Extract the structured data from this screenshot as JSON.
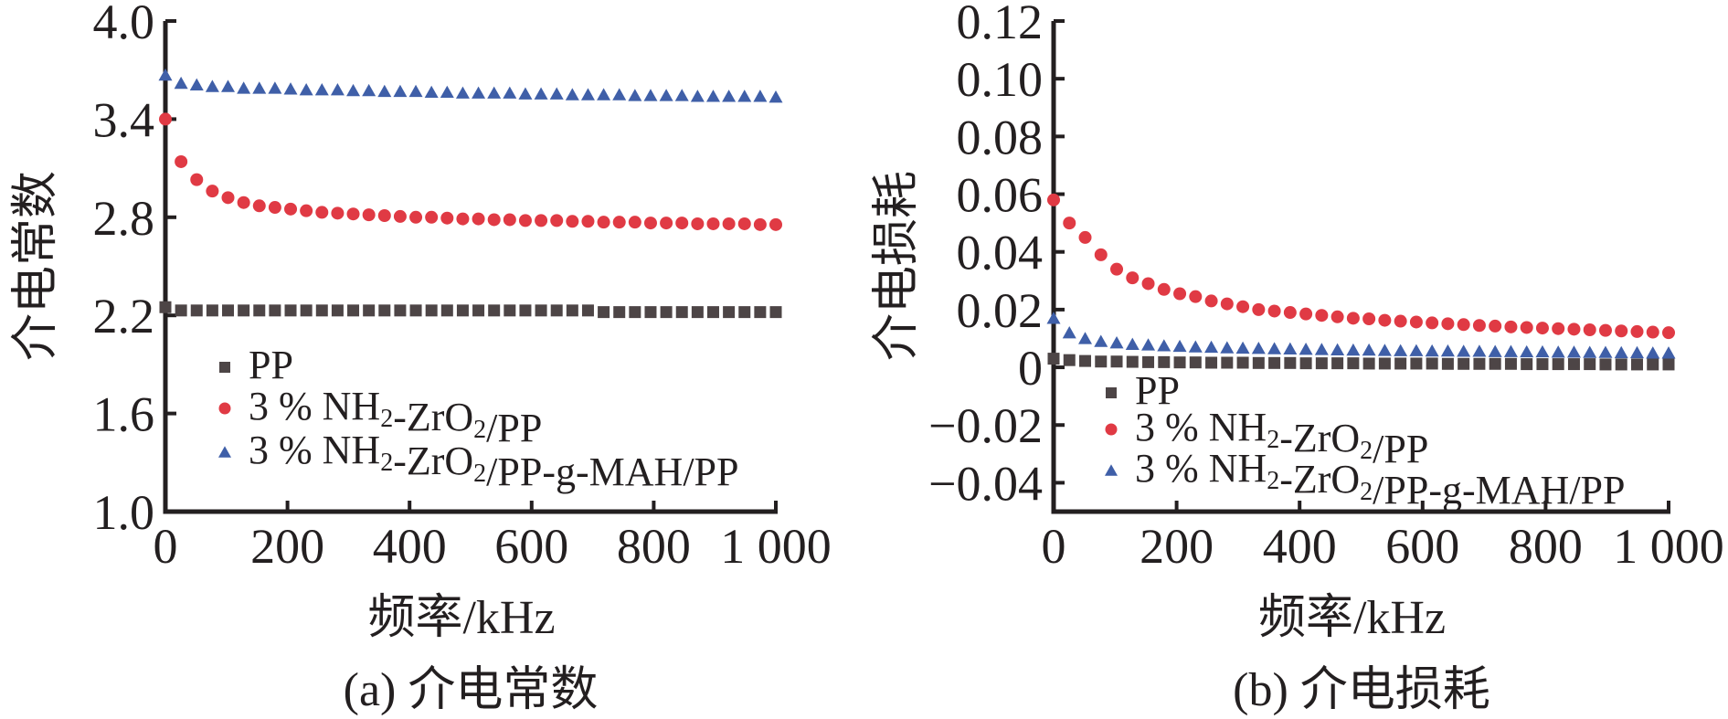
{
  "colors": {
    "PP": "#4d4546",
    "red": "#e03a44",
    "blue": "#3f5fa8",
    "axis": "#231f20"
  },
  "chart_data": [
    {
      "type": "scatter",
      "caption": "(a) 介电常数",
      "xlabel": "频率/kHz",
      "ylabel": "介电常数",
      "xlim": [
        0,
        1000
      ],
      "ylim": [
        1.0,
        4.0
      ],
      "xticks": [
        0,
        200,
        400,
        600,
        800,
        1000
      ],
      "xtick_labels": [
        "0",
        "200",
        "400",
        "600",
        "800",
        "1 000"
      ],
      "yticks": [
        1.0,
        1.6,
        2.2,
        2.8,
        3.4,
        4.0
      ],
      "ytick_labels": [
        "1.0",
        "1.6",
        "2.2",
        "2.8",
        "3.4",
        "4.0"
      ],
      "grid": false,
      "legend_position": "lower-left",
      "series": [
        {
          "name": "PP",
          "marker": "square",
          "color": "#4d4546",
          "values": [
            2.25,
            2.23,
            2.23,
            2.23,
            2.23,
            2.23,
            2.23,
            2.23,
            2.23,
            2.23,
            2.23,
            2.23,
            2.23,
            2.23,
            2.23,
            2.23,
            2.23,
            2.23,
            2.23,
            2.23,
            2.23,
            2.23,
            2.23,
            2.23,
            2.23,
            2.23,
            2.23,
            2.23,
            2.22,
            2.22,
            2.22,
            2.22,
            2.22,
            2.22,
            2.22,
            2.22,
            2.22,
            2.22,
            2.22,
            2.22
          ]
        },
        {
          "name": "3 % NH2-ZrO2/PP",
          "marker": "circle",
          "color": "#e03a44",
          "values": [
            3.4,
            3.14,
            3.03,
            2.96,
            2.92,
            2.89,
            2.87,
            2.86,
            2.85,
            2.84,
            2.83,
            2.825,
            2.82,
            2.815,
            2.81,
            2.805,
            2.8,
            2.8,
            2.795,
            2.79,
            2.79,
            2.785,
            2.785,
            2.78,
            2.78,
            2.78,
            2.775,
            2.775,
            2.77,
            2.77,
            2.77,
            2.765,
            2.765,
            2.765,
            2.76,
            2.76,
            2.76,
            2.76,
            2.755,
            2.755
          ]
        },
        {
          "name": "3 % NH2-ZrO2/PP-g-MAH/PP",
          "marker": "triangle",
          "color": "#3f5fa8",
          "values": [
            3.67,
            3.62,
            3.61,
            3.6,
            3.6,
            3.59,
            3.59,
            3.59,
            3.585,
            3.58,
            3.58,
            3.58,
            3.575,
            3.575,
            3.57,
            3.57,
            3.57,
            3.565,
            3.565,
            3.56,
            3.56,
            3.56,
            3.56,
            3.555,
            3.555,
            3.555,
            3.55,
            3.55,
            3.55,
            3.55,
            3.545,
            3.545,
            3.545,
            3.545,
            3.54,
            3.54,
            3.54,
            3.54,
            3.54,
            3.535
          ]
        }
      ]
    },
    {
      "type": "scatter",
      "caption": "(b) 介电损耗",
      "xlabel": "频率/kHz",
      "ylabel": "介电损耗",
      "xlim": [
        0,
        1000
      ],
      "ylim": [
        -0.05,
        0.12
      ],
      "xticks": [
        0,
        200,
        400,
        600,
        800,
        1000
      ],
      "xtick_labels": [
        "0",
        "200",
        "400",
        "600",
        "800",
        "1 000"
      ],
      "yticks": [
        -0.04,
        -0.02,
        0,
        0.02,
        0.04,
        0.06,
        0.08,
        0.1,
        0.12
      ],
      "ytick_labels": [
        "−0.04",
        "−0.02",
        "0",
        "0.02",
        "0.04",
        "0.06",
        "0.08",
        "0.10",
        "0.12"
      ],
      "grid": false,
      "legend_position": "lower-left",
      "series": [
        {
          "name": "PP",
          "marker": "square",
          "color": "#4d4546",
          "values": [
            0.003,
            0.0025,
            0.0022,
            0.002,
            0.002,
            0.0019,
            0.0018,
            0.0018,
            0.0017,
            0.0017,
            0.0016,
            0.0016,
            0.0016,
            0.0015,
            0.0015,
            0.0015,
            0.0014,
            0.0014,
            0.0014,
            0.0014,
            0.0013,
            0.0013,
            0.0013,
            0.0013,
            0.0013,
            0.0012,
            0.0012,
            0.0012,
            0.0012,
            0.0012,
            0.0011,
            0.0011,
            0.0011,
            0.0011,
            0.0011,
            0.001,
            0.001,
            0.001,
            0.001,
            0.001
          ]
        },
        {
          "name": "3 % NH2-ZrO2/PP",
          "marker": "circle",
          "color": "#e03a44",
          "values": [
            0.058,
            0.05,
            0.045,
            0.039,
            0.034,
            0.031,
            0.029,
            0.027,
            0.0255,
            0.0245,
            0.023,
            0.022,
            0.021,
            0.02,
            0.0195,
            0.019,
            0.0185,
            0.018,
            0.0175,
            0.017,
            0.0168,
            0.0163,
            0.016,
            0.0157,
            0.0154,
            0.0151,
            0.0148,
            0.0145,
            0.0143,
            0.014,
            0.0138,
            0.0136,
            0.0134,
            0.0132,
            0.013,
            0.0128,
            0.0126,
            0.0124,
            0.0122,
            0.012
          ]
        },
        {
          "name": "3 % NH2-ZrO2/PP-g-MAH/PP",
          "marker": "triangle",
          "color": "#3f5fa8",
          "values": [
            0.017,
            0.012,
            0.01,
            0.009,
            0.0085,
            0.008,
            0.0078,
            0.0075,
            0.0073,
            0.0071,
            0.007,
            0.0068,
            0.0067,
            0.0066,
            0.0065,
            0.0064,
            0.0063,
            0.0062,
            0.0061,
            0.006,
            0.006,
            0.0059,
            0.0058,
            0.0058,
            0.0057,
            0.0057,
            0.0056,
            0.0056,
            0.0055,
            0.0055,
            0.0054,
            0.0054,
            0.0053,
            0.0053,
            0.0052,
            0.0052,
            0.0051,
            0.0051,
            0.005,
            0.005
          ]
        }
      ]
    }
  ]
}
